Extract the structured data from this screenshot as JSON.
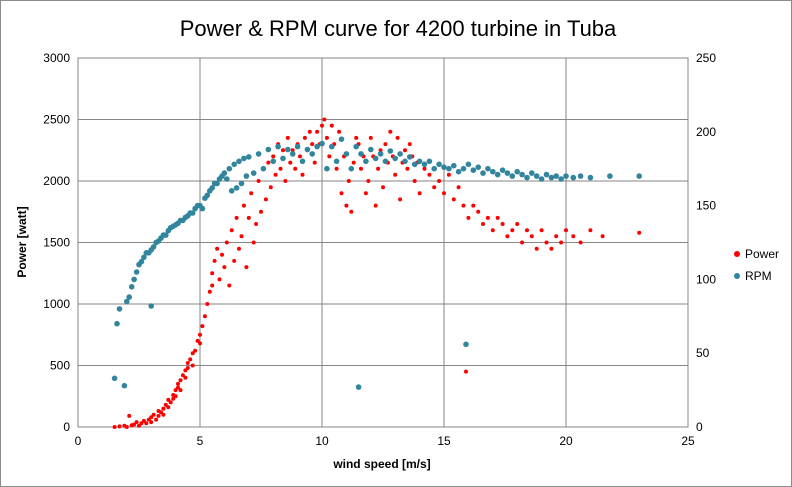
{
  "chart_data": {
    "type": "scatter",
    "title": "Power & RPM curve for 4200 turbine in Tuba",
    "xlabel": "wind speed [m/s]",
    "ylabel": "Power [watt]",
    "y2label": "",
    "xlim": [
      0,
      25
    ],
    "ylim": [
      0,
      3000
    ],
    "y2lim": [
      0,
      250
    ],
    "x_ticks": [
      "0",
      "5",
      "10",
      "15",
      "20",
      "25"
    ],
    "y_ticks": [
      "0",
      "500",
      "1000",
      "1500",
      "2000",
      "2500",
      "3000"
    ],
    "y2_ticks": [
      "0",
      "50",
      "100",
      "150",
      "200",
      "250"
    ],
    "grid": true,
    "legend_position": "right",
    "series": [
      {
        "name": "Power",
        "axis": "left",
        "color": "#ff0000",
        "points": [
          [
            1.5,
            0
          ],
          [
            1.7,
            5
          ],
          [
            1.9,
            10
          ],
          [
            2.0,
            0
          ],
          [
            2.1,
            90
          ],
          [
            2.2,
            15
          ],
          [
            2.3,
            20
          ],
          [
            2.4,
            40
          ],
          [
            2.5,
            10
          ],
          [
            2.6,
            30
          ],
          [
            2.7,
            50
          ],
          [
            2.8,
            30
          ],
          [
            2.9,
            60
          ],
          [
            3.0,
            40
          ],
          [
            3.0,
            80
          ],
          [
            3.1,
            100
          ],
          [
            3.2,
            60
          ],
          [
            3.3,
            130
          ],
          [
            3.3,
            90
          ],
          [
            3.4,
            120
          ],
          [
            3.5,
            150
          ],
          [
            3.5,
            100
          ],
          [
            3.6,
            180
          ],
          [
            3.7,
            160
          ],
          [
            3.7,
            220
          ],
          [
            3.8,
            200
          ],
          [
            3.9,
            260
          ],
          [
            3.9,
            230
          ],
          [
            4.0,
            300
          ],
          [
            4.0,
            250
          ],
          [
            4.1,
            350
          ],
          [
            4.1,
            320
          ],
          [
            4.2,
            380
          ],
          [
            4.2,
            300
          ],
          [
            4.3,
            420
          ],
          [
            4.4,
            460
          ],
          [
            4.4,
            400
          ],
          [
            4.5,
            520
          ],
          [
            4.5,
            480
          ],
          [
            4.6,
            550
          ],
          [
            4.7,
            600
          ],
          [
            4.7,
            500
          ],
          [
            4.8,
            620
          ],
          [
            4.9,
            700
          ],
          [
            5.0,
            750
          ],
          [
            5.0,
            680
          ],
          [
            5.1,
            820
          ],
          [
            5.2,
            900
          ],
          [
            5.3,
            1000
          ],
          [
            5.4,
            1100
          ],
          [
            5.5,
            1250
          ],
          [
            5.5,
            1150
          ],
          [
            5.6,
            1350
          ],
          [
            5.7,
            1450
          ],
          [
            5.8,
            1200
          ],
          [
            5.9,
            1400
          ],
          [
            6.0,
            1300
          ],
          [
            6.1,
            1500
          ],
          [
            6.2,
            1150
          ],
          [
            6.3,
            1600
          ],
          [
            6.4,
            1350
          ],
          [
            6.5,
            1700
          ],
          [
            6.6,
            1450
          ],
          [
            6.7,
            1550
          ],
          [
            6.8,
            1800
          ],
          [
            6.9,
            1300
          ],
          [
            7.0,
            1700
          ],
          [
            7.1,
            1900
          ],
          [
            7.2,
            1500
          ],
          [
            7.3,
            1650
          ],
          [
            7.4,
            2000
          ],
          [
            7.5,
            1750
          ],
          [
            7.6,
            2100
          ],
          [
            7.7,
            1850
          ],
          [
            7.8,
            2150
          ],
          [
            7.9,
            1950
          ],
          [
            8.0,
            2200
          ],
          [
            8.1,
            2050
          ],
          [
            8.2,
            2300
          ],
          [
            8.3,
            2100
          ],
          [
            8.4,
            2250
          ],
          [
            8.5,
            2000
          ],
          [
            8.6,
            2350
          ],
          [
            8.7,
            2150
          ],
          [
            8.8,
            2250
          ],
          [
            8.9,
            2100
          ],
          [
            9.0,
            2300
          ],
          [
            9.1,
            2200
          ],
          [
            9.2,
            2050
          ],
          [
            9.3,
            2350
          ],
          [
            9.4,
            2250
          ],
          [
            9.5,
            2400
          ],
          [
            9.6,
            2300
          ],
          [
            9.7,
            2150
          ],
          [
            9.8,
            2400
          ],
          [
            9.9,
            2300
          ],
          [
            10.0,
            2450
          ],
          [
            10.1,
            2500
          ],
          [
            10.2,
            2350
          ],
          [
            10.3,
            2200
          ],
          [
            10.4,
            2450
          ],
          [
            10.5,
            2300
          ],
          [
            10.6,
            2100
          ],
          [
            10.7,
            2400
          ],
          [
            10.8,
            1900
          ],
          [
            10.9,
            2200
          ],
          [
            11.0,
            1800
          ],
          [
            11.1,
            2000
          ],
          [
            11.2,
            1750
          ],
          [
            11.3,
            2150
          ],
          [
            11.4,
            2350
          ],
          [
            11.5,
            2300
          ],
          [
            11.6,
            2100
          ],
          [
            11.7,
            2200
          ],
          [
            11.8,
            1900
          ],
          [
            11.9,
            2000
          ],
          [
            12.0,
            2350
          ],
          [
            12.1,
            2200
          ],
          [
            12.2,
            1800
          ],
          [
            12.3,
            2100
          ],
          [
            12.4,
            2250
          ],
          [
            12.5,
            1950
          ],
          [
            12.6,
            2300
          ],
          [
            12.7,
            2150
          ],
          [
            12.8,
            2400
          ],
          [
            12.9,
            2200
          ],
          [
            13.0,
            2050
          ],
          [
            13.1,
            2350
          ],
          [
            13.2,
            1850
          ],
          [
            13.3,
            2150
          ],
          [
            13.4,
            2250
          ],
          [
            13.5,
            2100
          ],
          [
            13.6,
            2300
          ],
          [
            13.7,
            2200
          ],
          [
            13.8,
            2000
          ],
          [
            13.9,
            2150
          ],
          [
            14.0,
            1900
          ],
          [
            14.2,
            2100
          ],
          [
            14.4,
            2050
          ],
          [
            14.6,
            1950
          ],
          [
            14.8,
            2000
          ],
          [
            15.0,
            1900
          ],
          [
            15.2,
            2050
          ],
          [
            15.4,
            1850
          ],
          [
            15.6,
            1950
          ],
          [
            15.8,
            1800
          ],
          [
            16.0,
            1700
          ],
          [
            16.2,
            1800
          ],
          [
            16.4,
            1750
          ],
          [
            16.6,
            1650
          ],
          [
            16.8,
            1700
          ],
          [
            17.0,
            1600
          ],
          [
            17.2,
            1700
          ],
          [
            17.4,
            1650
          ],
          [
            17.6,
            1550
          ],
          [
            17.8,
            1600
          ],
          [
            18.0,
            1650
          ],
          [
            18.2,
            1500
          ],
          [
            18.4,
            1600
          ],
          [
            18.6,
            1550
          ],
          [
            18.8,
            1450
          ],
          [
            19.0,
            1600
          ],
          [
            19.2,
            1500
          ],
          [
            19.4,
            1450
          ],
          [
            19.6,
            1550
          ],
          [
            19.8,
            1500
          ],
          [
            20.0,
            1600
          ],
          [
            20.3,
            1550
          ],
          [
            20.6,
            1500
          ],
          [
            21.0,
            1600
          ],
          [
            21.5,
            1550
          ],
          [
            23.0,
            1580
          ],
          [
            15.9,
            450
          ]
        ]
      },
      {
        "name": "RPM",
        "axis": "right",
        "color": "#31859c",
        "points": [
          [
            1.5,
            33
          ],
          [
            1.6,
            70
          ],
          [
            1.7,
            80
          ],
          [
            1.9,
            28
          ],
          [
            2.0,
            85
          ],
          [
            2.1,
            88
          ],
          [
            2.2,
            95
          ],
          [
            2.3,
            100
          ],
          [
            2.4,
            105
          ],
          [
            2.5,
            110
          ],
          [
            2.6,
            112
          ],
          [
            2.7,
            115
          ],
          [
            2.8,
            118
          ],
          [
            2.9,
            118
          ],
          [
            3.0,
            120
          ],
          [
            3.0,
            82
          ],
          [
            3.1,
            122
          ],
          [
            3.2,
            125
          ],
          [
            3.3,
            126
          ],
          [
            3.4,
            128
          ],
          [
            3.5,
            130
          ],
          [
            3.6,
            130
          ],
          [
            3.7,
            133
          ],
          [
            3.8,
            135
          ],
          [
            3.9,
            136
          ],
          [
            4.0,
            137
          ],
          [
            4.1,
            138
          ],
          [
            4.2,
            140
          ],
          [
            4.3,
            140
          ],
          [
            4.4,
            142
          ],
          [
            4.5,
            143
          ],
          [
            4.6,
            145
          ],
          [
            4.7,
            145
          ],
          [
            4.8,
            148
          ],
          [
            4.9,
            150
          ],
          [
            5.0,
            150
          ],
          [
            5.1,
            148
          ],
          [
            5.2,
            155
          ],
          [
            5.3,
            157
          ],
          [
            5.4,
            160
          ],
          [
            5.5,
            162
          ],
          [
            5.6,
            165
          ],
          [
            5.7,
            165
          ],
          [
            5.8,
            168
          ],
          [
            5.9,
            170
          ],
          [
            6.0,
            172
          ],
          [
            6.1,
            168
          ],
          [
            6.2,
            175
          ],
          [
            6.3,
            160
          ],
          [
            6.4,
            178
          ],
          [
            6.5,
            162
          ],
          [
            6.6,
            180
          ],
          [
            6.7,
            165
          ],
          [
            6.8,
            182
          ],
          [
            6.9,
            170
          ],
          [
            7.0,
            183
          ],
          [
            7.2,
            172
          ],
          [
            7.4,
            185
          ],
          [
            7.6,
            175
          ],
          [
            7.8,
            188
          ],
          [
            8.0,
            180
          ],
          [
            8.2,
            190
          ],
          [
            8.4,
            182
          ],
          [
            8.6,
            188
          ],
          [
            8.8,
            185
          ],
          [
            9.0,
            190
          ],
          [
            9.2,
            180
          ],
          [
            9.4,
            188
          ],
          [
            9.6,
            185
          ],
          [
            9.8,
            190
          ],
          [
            10.0,
            192
          ],
          [
            10.2,
            175
          ],
          [
            10.4,
            190
          ],
          [
            10.6,
            180
          ],
          [
            10.8,
            195
          ],
          [
            11.0,
            185
          ],
          [
            11.2,
            175
          ],
          [
            11.4,
            190
          ],
          [
            11.6,
            185
          ],
          [
            11.8,
            180
          ],
          [
            12.0,
            188
          ],
          [
            12.2,
            182
          ],
          [
            12.4,
            185
          ],
          [
            12.6,
            180
          ],
          [
            12.8,
            187
          ],
          [
            13.0,
            182
          ],
          [
            13.2,
            185
          ],
          [
            13.4,
            180
          ],
          [
            13.6,
            183
          ],
          [
            13.8,
            178
          ],
          [
            14.0,
            180
          ],
          [
            14.2,
            178
          ],
          [
            14.4,
            180
          ],
          [
            14.6,
            175
          ],
          [
            14.8,
            178
          ],
          [
            15.0,
            176
          ],
          [
            15.2,
            175
          ],
          [
            15.4,
            177
          ],
          [
            15.6,
            173
          ],
          [
            15.8,
            175
          ],
          [
            16.0,
            178
          ],
          [
            16.2,
            174
          ],
          [
            16.4,
            176
          ],
          [
            16.6,
            172
          ],
          [
            16.8,
            175
          ],
          [
            17.0,
            173
          ],
          [
            17.2,
            171
          ],
          [
            17.4,
            174
          ],
          [
            17.6,
            172
          ],
          [
            17.8,
            170
          ],
          [
            18.0,
            173
          ],
          [
            18.2,
            171
          ],
          [
            18.4,
            169
          ],
          [
            18.6,
            172
          ],
          [
            18.8,
            170
          ],
          [
            19.0,
            168
          ],
          [
            19.2,
            171
          ],
          [
            19.4,
            169
          ],
          [
            19.6,
            170
          ],
          [
            19.8,
            168
          ],
          [
            20.0,
            170
          ],
          [
            20.3,
            169
          ],
          [
            20.6,
            170
          ],
          [
            21.0,
            169
          ],
          [
            21.8,
            170
          ],
          [
            23.0,
            170
          ],
          [
            11.5,
            27
          ],
          [
            15.9,
            56
          ]
        ]
      }
    ]
  }
}
